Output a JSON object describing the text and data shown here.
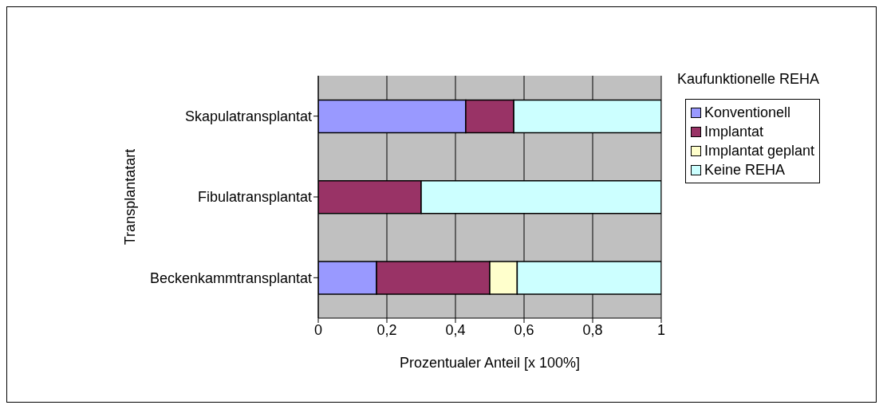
{
  "chart_data": {
    "type": "bar",
    "orientation": "horizontal",
    "stacked": true,
    "categories": [
      "Skapulatransplantat",
      "Fibulatransplantat",
      "Beckenkammtransplantat"
    ],
    "series": [
      {
        "name": "Konventionell",
        "color": "#9999ff",
        "values": [
          0.43,
          0,
          0.17
        ]
      },
      {
        "name": "Implantat",
        "color": "#993366",
        "values": [
          0.14,
          0.3,
          0.33
        ]
      },
      {
        "name": "Implantat geplant",
        "color": "#ffffcc",
        "values": [
          0,
          0,
          0.08
        ]
      },
      {
        "name": "Keine REHA",
        "color": "#ccffff",
        "values": [
          0.43,
          0.7,
          0.42
        ]
      }
    ],
    "xlim": [
      0,
      1
    ],
    "xticks": [
      0,
      {
        "value": 0.2,
        "label": "0,2"
      },
      {
        "value": 0.4,
        "label": "0,4"
      },
      {
        "value": 0.6,
        "label": "0,6"
      },
      {
        "value": 0.8,
        "label": "0,8"
      },
      1
    ],
    "xlabel": "Prozentualer Anteil [x 100%]",
    "ylabel": "Transplantatart",
    "legend_title": "Kaufunktionelle REHA",
    "legend": "right",
    "grid": "x"
  }
}
